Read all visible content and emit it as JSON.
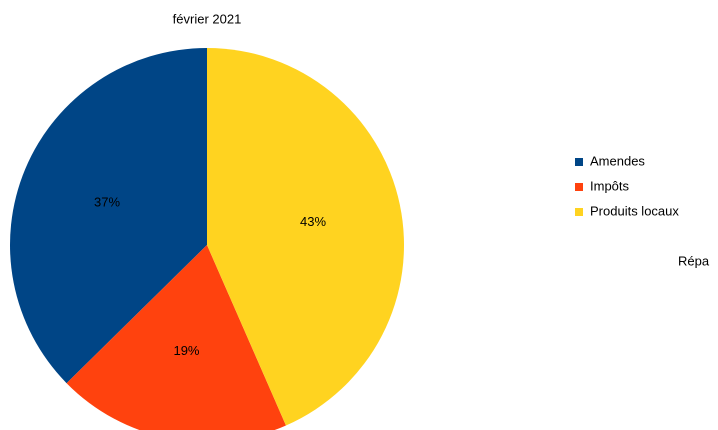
{
  "chart_data": {
    "type": "pie",
    "title": "février 2021",
    "categories": [
      "Amendes",
      "Impôts",
      "Produits  locaux"
    ],
    "values": [
      37,
      19,
      43
    ],
    "value_labels": [
      "37%",
      "19%",
      "43%"
    ],
    "colors": [
      "#004586",
      "#ff420e",
      "#ffd320"
    ],
    "legend": "right",
    "annotation": "Répa"
  }
}
